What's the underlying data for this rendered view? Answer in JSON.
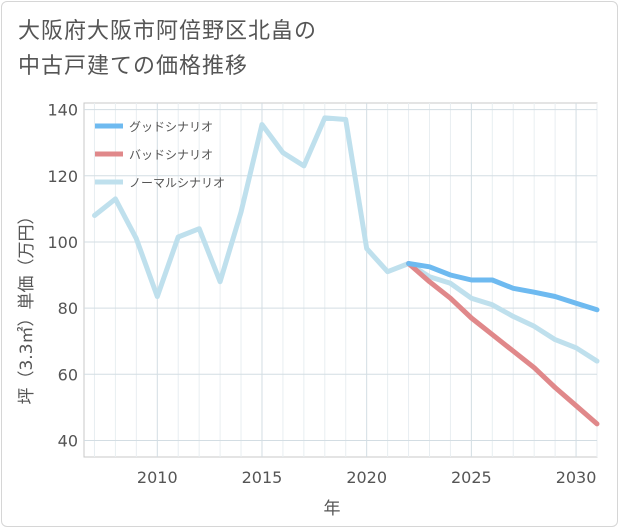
{
  "title_lines": [
    "大阪府大阪市阿倍野区北畠の",
    "中古戸建ての価格推移"
  ],
  "chart_data": {
    "type": "line",
    "xlabel": "年",
    "ylabel": "坪（3.3㎡）単価（万円）",
    "xlim": [
      2006.5,
      2031
    ],
    "ylim": [
      35,
      142
    ],
    "xticks": [
      2010,
      2015,
      2020,
      2025,
      2030
    ],
    "yticks": [
      40,
      60,
      80,
      100,
      120,
      140
    ],
    "grid": true,
    "legend_position": "top-left",
    "series": [
      {
        "name": "グッドシナリオ",
        "color": "#6ebaf0",
        "x": [
          2022,
          2023,
          2024,
          2025,
          2026,
          2027,
          2028,
          2029,
          2030,
          2031
        ],
        "values": [
          93.5,
          92.5,
          90,
          88.5,
          88.5,
          86,
          84.8,
          83.5,
          81.5,
          79.5
        ]
      },
      {
        "name": "バッドシナリオ",
        "color": "#e0888a",
        "x": [
          2022,
          2023,
          2024,
          2025,
          2026,
          2027,
          2028,
          2029,
          2030,
          2031
        ],
        "values": [
          93.5,
          88,
          83,
          77,
          72,
          67,
          62,
          56,
          50.5,
          45
        ]
      },
      {
        "name": "ノーマルシナリオ",
        "color": "#bfe0ed",
        "x": [
          2007,
          2008,
          2009,
          2010,
          2011,
          2012,
          2013,
          2014,
          2015,
          2016,
          2017,
          2018,
          2019,
          2020,
          2021,
          2022,
          2023,
          2024,
          2025,
          2026,
          2027,
          2028,
          2029,
          2030,
          2031
        ],
        "values": [
          108,
          113,
          101,
          83.5,
          101.5,
          104,
          88,
          109,
          135.5,
          127,
          123,
          137.5,
          137,
          98,
          91,
          93.5,
          89.5,
          87.5,
          83,
          81,
          77.5,
          74.5,
          70.5,
          68,
          64
        ]
      }
    ]
  }
}
